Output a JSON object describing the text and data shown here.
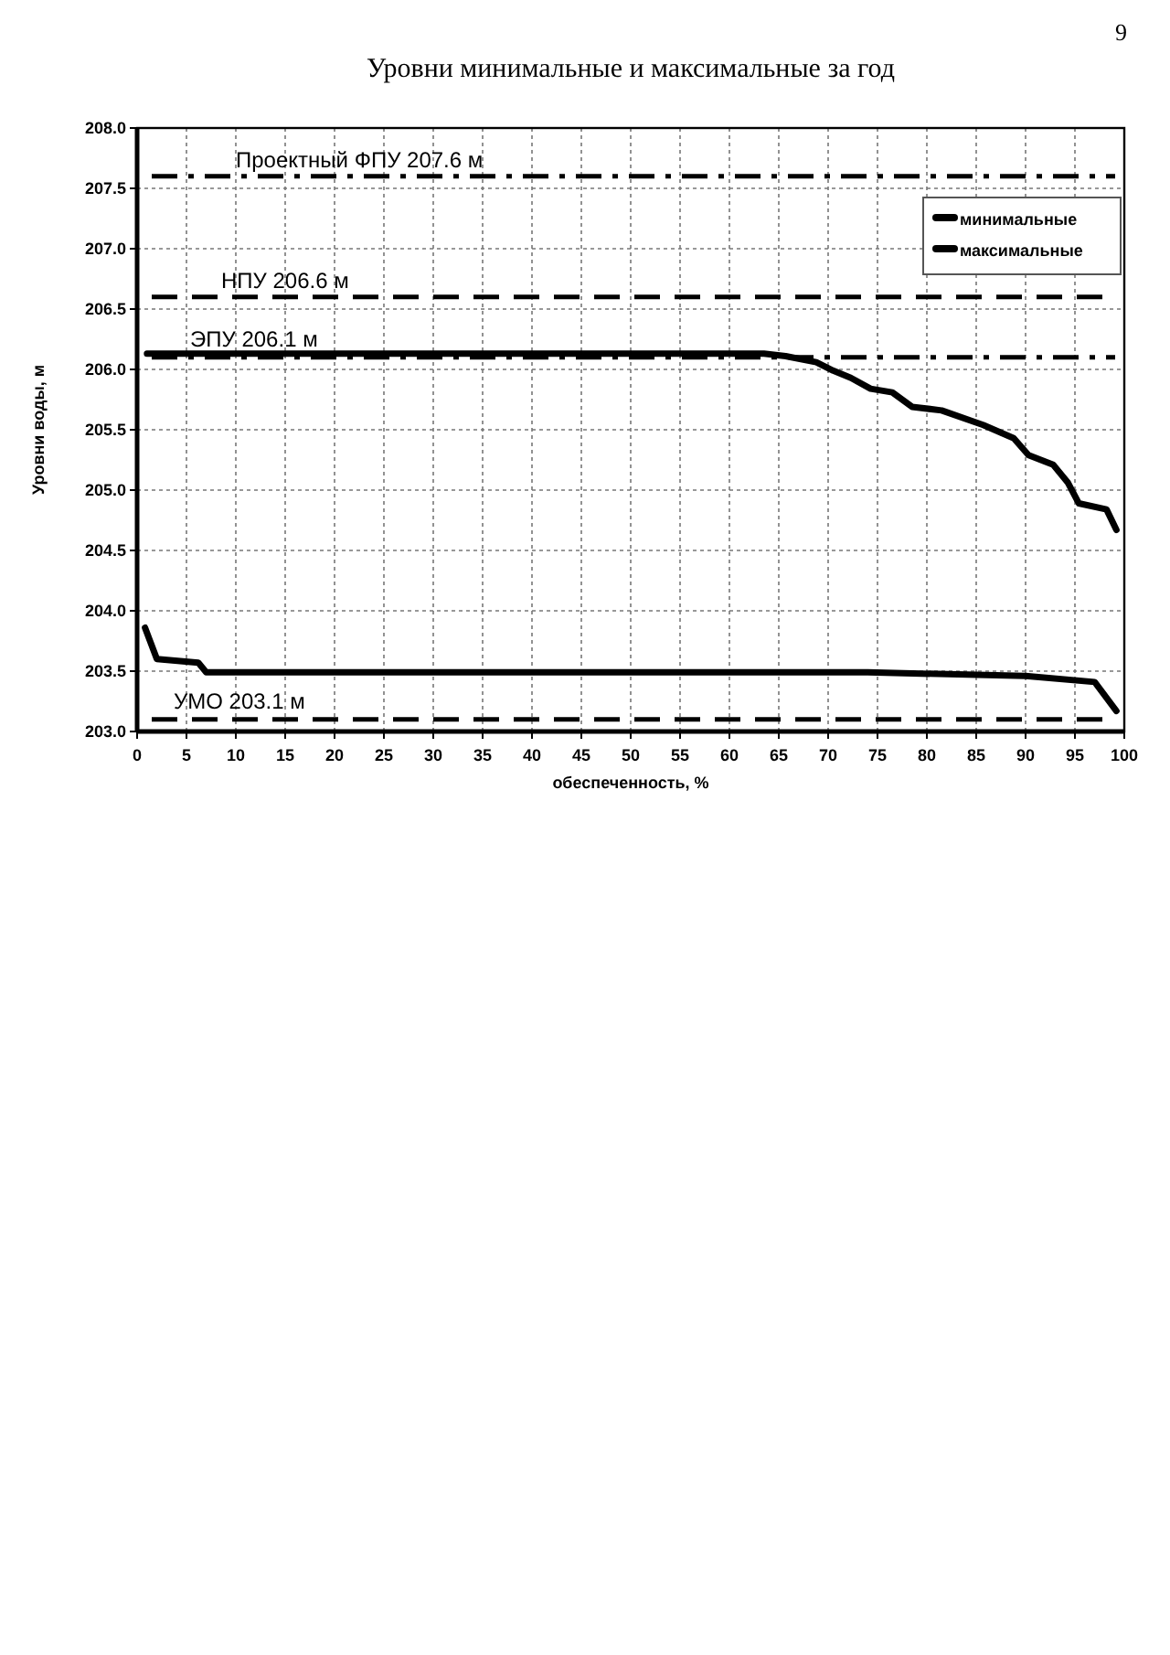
{
  "chart_data": {
    "type": "line",
    "title": "Уровни минимальные и максимальные за год",
    "xlabel": "обеспеченность, %",
    "ylabel": "Уровни воды, м",
    "annotations": [
      "9"
    ],
    "xlim": [
      0,
      100
    ],
    "xticks": [
      0,
      5,
      10,
      15,
      20,
      25,
      30,
      35,
      40,
      45,
      50,
      55,
      60,
      65,
      70,
      75,
      80,
      85,
      90,
      95,
      100
    ],
    "ylim": [
      203,
      208
    ],
    "yticks": [
      {
        "value": 203,
        "label": "203.0"
      },
      {
        "value": 203.5,
        "label": "203.5"
      },
      {
        "value": 204,
        "label": "204.0"
      },
      {
        "value": 204.5,
        "label": "204.5"
      },
      {
        "value": 205,
        "label": "205.0"
      },
      {
        "value": 205.5,
        "label": "205.5"
      },
      {
        "value": 206,
        "label": "206.0"
      },
      {
        "value": 206.5,
        "label": "206.5"
      },
      {
        "value": 207,
        "label": "207.0"
      },
      {
        "value": 207.5,
        "label": "207.5"
      },
      {
        "value": 208,
        "label": "208.0"
      }
    ],
    "grid": true,
    "legend": "top right",
    "line_style": "solid",
    "ref_lines": [
      {
        "axis": "y",
        "value": 207.6,
        "label": "Проектный ФПУ 207.6 м",
        "color": "#000000",
        "line_style": "dashdot"
      },
      {
        "axis": "y",
        "value": 206.6,
        "label": "НПУ 206.6 м",
        "color": "#000000",
        "line_style": "dashed"
      },
      {
        "axis": "y",
        "value": 206.1,
        "label": "ЭПУ 206.1 м",
        "color": "#000000",
        "line_style": "dashdot"
      },
      {
        "axis": "y",
        "value": 203.1,
        "label": "УМО 203.1 м",
        "color": "#000000",
        "line_style": "dashed"
      }
    ],
    "series": [
      {
        "name": "минимальные",
        "color": "#000000",
        "x": [
          0.8,
          2,
          6.2,
          7,
          20,
          40,
          60,
          74,
          90,
          97,
          99.2
        ],
        "values": [
          203.86,
          203.6,
          203.57,
          203.49,
          203.49,
          203.49,
          203.49,
          203.49,
          203.46,
          203.41,
          203.17
        ]
      },
      {
        "name": "максимальные",
        "color": "#000000",
        "x": [
          1,
          20,
          40,
          63.5,
          65.7,
          68.8,
          70.5,
          72.3,
          74.3,
          76.5,
          78.5,
          81.5,
          85.7,
          88.8,
          90.3,
          92.8,
          94.3,
          95.4,
          98.2,
          99.2
        ],
        "values": [
          206.13,
          206.13,
          206.13,
          206.13,
          206.11,
          206.06,
          205.99,
          205.93,
          205.84,
          205.81,
          205.69,
          205.66,
          205.54,
          205.43,
          205.29,
          205.21,
          205.06,
          204.89,
          204.84,
          204.67
        ]
      }
    ]
  }
}
